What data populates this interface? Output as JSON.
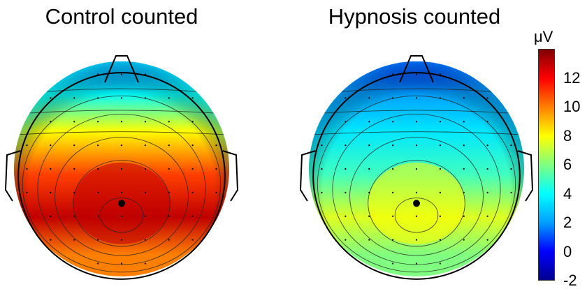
{
  "chart_data": [
    {
      "type": "heatmap",
      "title": "Control counted",
      "peak_value": 13,
      "values": [
        {
          "x": 0,
          "y": -1.0,
          "value": 1
        },
        {
          "x": 0,
          "y": -0.7,
          "value": 4
        },
        {
          "x": 0,
          "y": -0.35,
          "value": 8
        },
        {
          "x": 0,
          "y": 0.05,
          "value": 11
        },
        {
          "x": 0,
          "y": 0.45,
          "value": 13
        },
        {
          "x": 0,
          "y": 0.8,
          "value": 10
        }
      ]
    },
    {
      "type": "heatmap",
      "title": "Hypnosis counted",
      "peak_value": 8,
      "values": [
        {
          "x": 0,
          "y": -1.0,
          "value": 0
        },
        {
          "x": 0,
          "y": -0.7,
          "value": 2
        },
        {
          "x": 0,
          "y": -0.35,
          "value": 3.5
        },
        {
          "x": 0,
          "y": 0.05,
          "value": 5
        },
        {
          "x": 0,
          "y": 0.45,
          "value": 7.5
        },
        {
          "x": 0,
          "y": 0.8,
          "value": 6
        }
      ]
    }
  ],
  "colorbar": {
    "unit": "μV",
    "ticks": [
      "12",
      "10",
      "8",
      "6",
      "4",
      "2",
      "0",
      "-2"
    ],
    "range": [
      -2,
      14
    ],
    "colors": [
      "#00008f",
      "#0000ff",
      "#00a0ff",
      "#00ffff",
      "#80ff80",
      "#ffff00",
      "#ff8000",
      "#ff0000",
      "#800000"
    ]
  }
}
